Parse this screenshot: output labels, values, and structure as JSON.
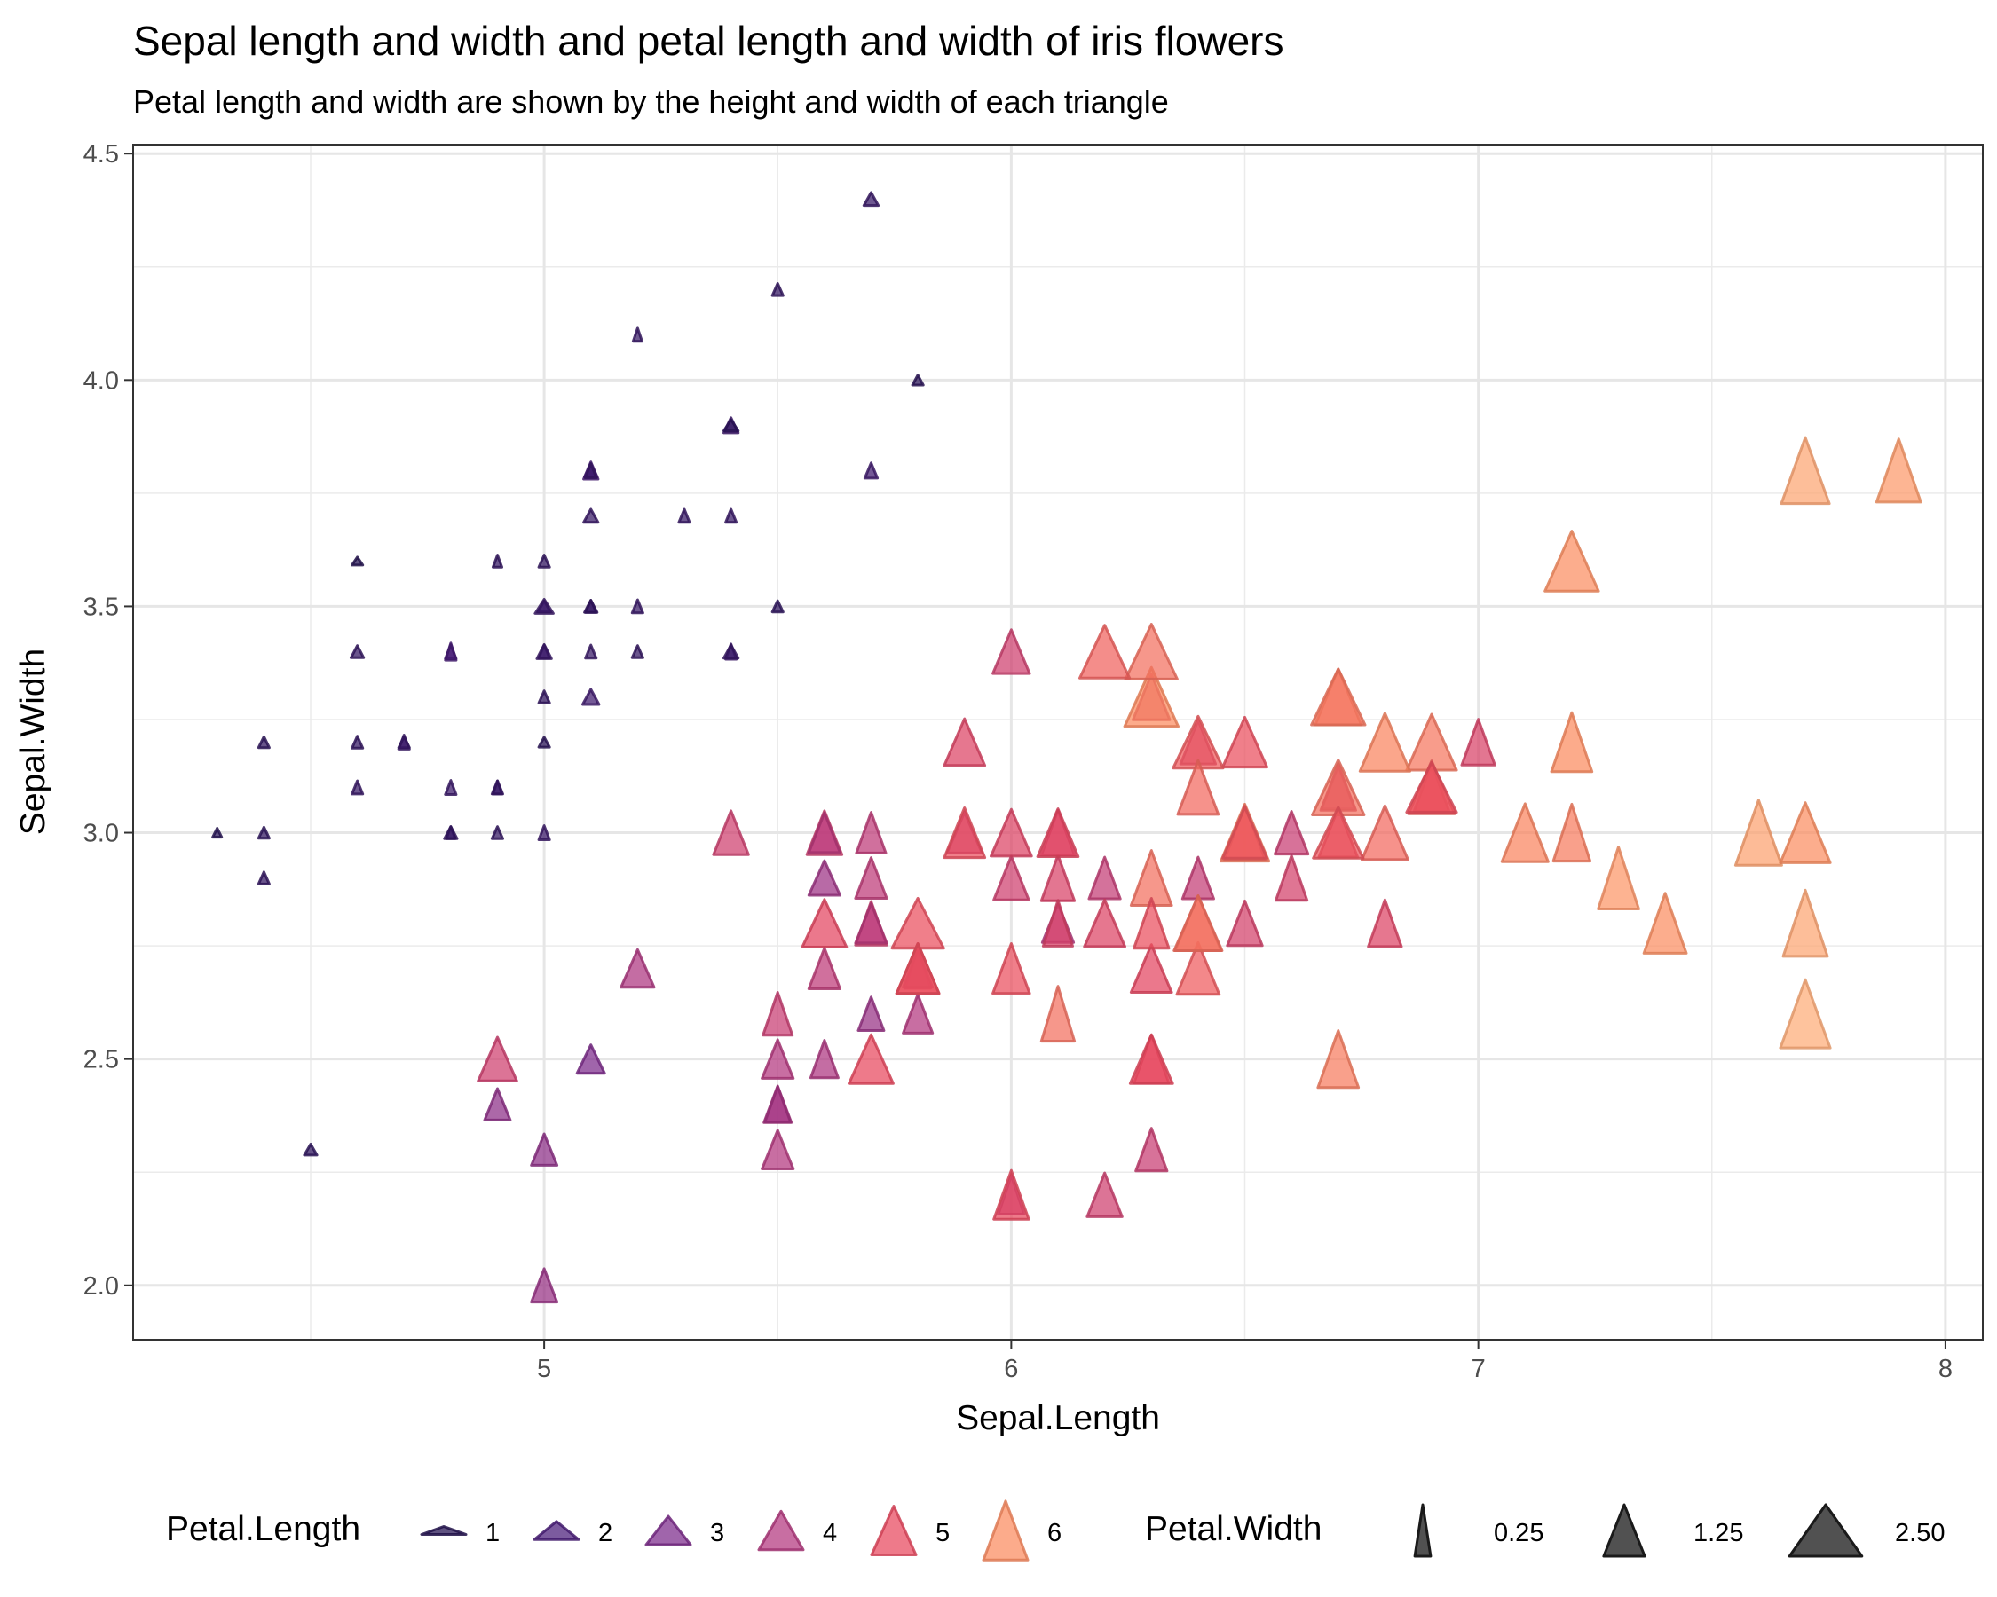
{
  "chart_data": {
    "type": "scatter",
    "title": "Sepal length and width and petal length and width of iris flowers",
    "subtitle": "Petal length and width are shown by the height and width of each triangle",
    "xlabel": "Sepal.Length",
    "ylabel": "Sepal.Width",
    "xlim": [
      4.12,
      8.08
    ],
    "ylim": [
      1.88,
      4.52
    ],
    "x_ticks": [
      5,
      6,
      7,
      8
    ],
    "x_tick_labels": [
      "5",
      "6",
      "7",
      "8"
    ],
    "y_ticks": [
      2.0,
      2.5,
      3.0,
      3.5,
      4.0,
      4.5
    ],
    "y_tick_labels": [
      "2.0",
      "2.5",
      "3.0",
      "3.5",
      "4.0",
      "4.5"
    ],
    "grid": true,
    "legend_position": "bottom",
    "marker": "triangle",
    "height_encodes": "Petal.Length",
    "width_encodes": "Petal.Width",
    "color_encodes": "Petal.Length",
    "point_opacity": 0.72,
    "color_scale": [
      {
        "value": 1,
        "color": "#221150"
      },
      {
        "value": 2,
        "color": "#4a1c7a"
      },
      {
        "value": 3,
        "color": "#7b2a8a"
      },
      {
        "value": 4,
        "color": "#b3367e"
      },
      {
        "value": 5,
        "color": "#e8465d"
      },
      {
        "value": 6,
        "color": "#fb8a5e"
      },
      {
        "value": 7,
        "color": "#fdb07a"
      }
    ],
    "legend_length": {
      "title": "Petal.Length",
      "items": [
        {
          "label": "1",
          "value": 1
        },
        {
          "label": "2",
          "value": 2
        },
        {
          "label": "3",
          "value": 3
        },
        {
          "label": "4",
          "value": 4
        },
        {
          "label": "5",
          "value": 5
        },
        {
          "label": "6",
          "value": 6
        }
      ]
    },
    "legend_width": {
      "title": "Petal.Width",
      "items": [
        {
          "label": "0.25",
          "value": 0.25
        },
        {
          "label": "1.25",
          "value": 1.25
        },
        {
          "label": "2.50",
          "value": 2.5
        }
      ]
    },
    "points": [
      [
        5.1,
        3.5,
        1.4,
        0.2
      ],
      [
        4.9,
        3.0,
        1.4,
        0.2
      ],
      [
        4.7,
        3.2,
        1.3,
        0.2
      ],
      [
        4.6,
        3.1,
        1.5,
        0.2
      ],
      [
        5.0,
        3.6,
        1.4,
        0.2
      ],
      [
        5.4,
        3.9,
        1.7,
        0.4
      ],
      [
        4.6,
        3.4,
        1.4,
        0.3
      ],
      [
        5.0,
        3.4,
        1.5,
        0.2
      ],
      [
        4.4,
        2.9,
        1.4,
        0.2
      ],
      [
        4.9,
        3.1,
        1.5,
        0.1
      ],
      [
        5.4,
        3.7,
        1.5,
        0.2
      ],
      [
        4.8,
        3.4,
        1.6,
        0.2
      ],
      [
        4.8,
        3.0,
        1.4,
        0.1
      ],
      [
        4.3,
        3.0,
        1.1,
        0.1
      ],
      [
        5.8,
        4.0,
        1.2,
        0.2
      ],
      [
        5.7,
        4.4,
        1.5,
        0.4
      ],
      [
        5.4,
        3.9,
        1.3,
        0.4
      ],
      [
        5.1,
        3.5,
        1.4,
        0.3
      ],
      [
        5.7,
        3.8,
        1.7,
        0.3
      ],
      [
        5.1,
        3.8,
        1.5,
        0.3
      ],
      [
        5.4,
        3.4,
        1.7,
        0.2
      ],
      [
        5.1,
        3.7,
        1.5,
        0.4
      ],
      [
        4.6,
        3.6,
        1.0,
        0.2
      ],
      [
        5.1,
        3.3,
        1.7,
        0.5
      ],
      [
        4.8,
        3.4,
        1.9,
        0.2
      ],
      [
        5.0,
        3.0,
        1.6,
        0.2
      ],
      [
        5.0,
        3.4,
        1.6,
        0.4
      ],
      [
        5.2,
        3.5,
        1.5,
        0.2
      ],
      [
        5.2,
        3.4,
        1.4,
        0.2
      ],
      [
        4.7,
        3.2,
        1.6,
        0.2
      ],
      [
        4.8,
        3.1,
        1.6,
        0.2
      ],
      [
        5.4,
        3.4,
        1.5,
        0.4
      ],
      [
        5.2,
        4.1,
        1.5,
        0.1
      ],
      [
        5.5,
        4.2,
        1.4,
        0.2
      ],
      [
        4.9,
        3.1,
        1.5,
        0.2
      ],
      [
        5.0,
        3.2,
        1.2,
        0.2
      ],
      [
        5.5,
        3.5,
        1.3,
        0.2
      ],
      [
        4.9,
        3.6,
        1.4,
        0.1
      ],
      [
        4.4,
        3.0,
        1.3,
        0.2
      ],
      [
        5.1,
        3.4,
        1.5,
        0.2
      ],
      [
        5.0,
        3.5,
        1.3,
        0.3
      ],
      [
        4.5,
        2.3,
        1.3,
        0.3
      ],
      [
        4.4,
        3.2,
        1.3,
        0.2
      ],
      [
        5.0,
        3.5,
        1.6,
        0.6
      ],
      [
        5.1,
        3.8,
        1.9,
        0.4
      ],
      [
        4.8,
        3.0,
        1.4,
        0.3
      ],
      [
        5.1,
        3.8,
        1.6,
        0.2
      ],
      [
        4.6,
        3.2,
        1.4,
        0.2
      ],
      [
        5.3,
        3.7,
        1.5,
        0.2
      ],
      [
        5.0,
        3.3,
        1.4,
        0.2
      ],
      [
        7.0,
        3.2,
        4.7,
        1.4
      ],
      [
        6.4,
        3.2,
        4.5,
        1.5
      ],
      [
        6.9,
        3.1,
        4.9,
        1.5
      ],
      [
        5.5,
        2.3,
        4.0,
        1.3
      ],
      [
        6.5,
        2.8,
        4.6,
        1.5
      ],
      [
        5.7,
        2.8,
        4.5,
        1.3
      ],
      [
        6.3,
        3.3,
        4.7,
        1.6
      ],
      [
        4.9,
        2.4,
        3.3,
        1.0
      ],
      [
        6.6,
        2.9,
        4.6,
        1.3
      ],
      [
        5.2,
        2.7,
        3.9,
        1.4
      ],
      [
        5.0,
        2.0,
        3.5,
        1.0
      ],
      [
        5.9,
        3.0,
        4.2,
        1.5
      ],
      [
        6.0,
        2.2,
        4.0,
        1.0
      ],
      [
        6.1,
        2.9,
        4.7,
        1.4
      ],
      [
        5.6,
        2.9,
        3.6,
        1.3
      ],
      [
        6.7,
        3.1,
        4.4,
        1.4
      ],
      [
        5.6,
        3.0,
        4.5,
        1.5
      ],
      [
        5.8,
        2.7,
        4.1,
        1.0
      ],
      [
        6.2,
        2.2,
        4.5,
        1.5
      ],
      [
        5.6,
        2.5,
        3.9,
        1.1
      ],
      [
        5.9,
        3.2,
        4.8,
        1.8
      ],
      [
        6.1,
        2.8,
        4.0,
        1.3
      ],
      [
        6.3,
        2.5,
        4.9,
        1.5
      ],
      [
        6.1,
        2.8,
        4.7,
        1.2
      ],
      [
        6.4,
        2.9,
        4.3,
        1.3
      ],
      [
        6.6,
        3.0,
        4.4,
        1.4
      ],
      [
        6.8,
        2.8,
        4.8,
        1.4
      ],
      [
        6.7,
        3.0,
        5.0,
        1.7
      ],
      [
        6.0,
        2.9,
        4.5,
        1.5
      ],
      [
        5.7,
        2.6,
        3.5,
        1.0
      ],
      [
        5.5,
        2.4,
        3.8,
        1.1
      ],
      [
        5.5,
        2.4,
        3.7,
        1.0
      ],
      [
        5.8,
        2.7,
        3.9,
        1.2
      ],
      [
        6.0,
        2.7,
        5.1,
        1.6
      ],
      [
        5.4,
        3.0,
        4.5,
        1.5
      ],
      [
        6.0,
        3.4,
        4.5,
        1.6
      ],
      [
        6.7,
        3.1,
        4.7,
        1.5
      ],
      [
        6.3,
        2.3,
        4.4,
        1.3
      ],
      [
        5.6,
        3.0,
        4.1,
        1.3
      ],
      [
        5.5,
        2.5,
        4.0,
        1.3
      ],
      [
        5.5,
        2.6,
        4.4,
        1.2
      ],
      [
        6.1,
        3.0,
        4.6,
        1.4
      ],
      [
        5.8,
        2.6,
        4.0,
        1.2
      ],
      [
        5.0,
        2.3,
        3.3,
        1.0
      ],
      [
        5.6,
        2.7,
        4.2,
        1.3
      ],
      [
        5.7,
        3.0,
        4.2,
        1.2
      ],
      [
        5.7,
        2.9,
        4.2,
        1.3
      ],
      [
        6.2,
        2.9,
        4.3,
        1.3
      ],
      [
        5.1,
        2.5,
        3.0,
        1.1
      ],
      [
        5.7,
        2.8,
        4.1,
        1.3
      ],
      [
        6.3,
        3.3,
        6.0,
        2.5
      ],
      [
        5.8,
        2.7,
        5.1,
        1.9
      ],
      [
        7.1,
        3.0,
        5.9,
        2.1
      ],
      [
        6.3,
        2.9,
        5.6,
        1.8
      ],
      [
        6.5,
        3.0,
        5.8,
        2.2
      ],
      [
        7.6,
        3.0,
        6.6,
        2.1
      ],
      [
        4.9,
        2.5,
        4.5,
        1.7
      ],
      [
        7.3,
        2.9,
        6.3,
        1.8
      ],
      [
        6.7,
        2.5,
        5.8,
        1.8
      ],
      [
        7.2,
        3.6,
        6.1,
        2.5
      ],
      [
        6.5,
        3.2,
        5.1,
        2.0
      ],
      [
        6.4,
        2.7,
        5.3,
        1.9
      ],
      [
        6.8,
        3.0,
        5.5,
        2.1
      ],
      [
        5.7,
        2.5,
        5.0,
        2.0
      ],
      [
        5.8,
        2.8,
        5.1,
        2.4
      ],
      [
        6.4,
        3.2,
        5.3,
        2.3
      ],
      [
        6.5,
        3.0,
        5.5,
        1.8
      ],
      [
        7.7,
        3.8,
        6.7,
        2.2
      ],
      [
        7.7,
        2.6,
        6.9,
        2.3
      ],
      [
        6.0,
        2.2,
        5.0,
        1.5
      ],
      [
        6.9,
        3.2,
        5.7,
        2.3
      ],
      [
        5.6,
        2.8,
        4.9,
        2.0
      ],
      [
        7.7,
        2.8,
        6.7,
        2.0
      ],
      [
        6.3,
        2.7,
        4.9,
        1.8
      ],
      [
        6.7,
        3.3,
        5.7,
        2.1
      ],
      [
        7.2,
        3.2,
        6.0,
        1.8
      ],
      [
        6.2,
        2.8,
        4.8,
        1.8
      ],
      [
        6.1,
        3.0,
        4.9,
        1.8
      ],
      [
        6.4,
        2.8,
        5.6,
        2.1
      ],
      [
        7.2,
        3.0,
        5.8,
        1.6
      ],
      [
        7.4,
        2.8,
        6.1,
        1.9
      ],
      [
        7.9,
        3.8,
        6.4,
        2.0
      ],
      [
        6.4,
        2.8,
        5.6,
        2.2
      ],
      [
        6.3,
        2.8,
        5.1,
        1.5
      ],
      [
        6.1,
        2.6,
        5.6,
        1.4
      ],
      [
        7.7,
        3.0,
        6.1,
        2.3
      ],
      [
        6.3,
        3.4,
        5.6,
        2.4
      ],
      [
        6.4,
        3.1,
        5.5,
        1.8
      ],
      [
        6.0,
        3.0,
        4.8,
        1.8
      ],
      [
        6.9,
        3.1,
        5.4,
        2.1
      ],
      [
        6.7,
        3.1,
        5.6,
        2.4
      ],
      [
        6.9,
        3.1,
        5.1,
        2.3
      ],
      [
        5.8,
        2.7,
        5.1,
        1.9
      ],
      [
        6.8,
        3.2,
        5.9,
        2.3
      ],
      [
        6.7,
        3.3,
        5.7,
        2.5
      ],
      [
        6.7,
        3.0,
        5.2,
        2.3
      ],
      [
        6.3,
        2.5,
        5.0,
        1.9
      ],
      [
        6.5,
        3.0,
        5.2,
        2.0
      ],
      [
        6.2,
        3.4,
        5.4,
        2.3
      ],
      [
        5.9,
        3.0,
        5.1,
        1.8
      ]
    ]
  }
}
